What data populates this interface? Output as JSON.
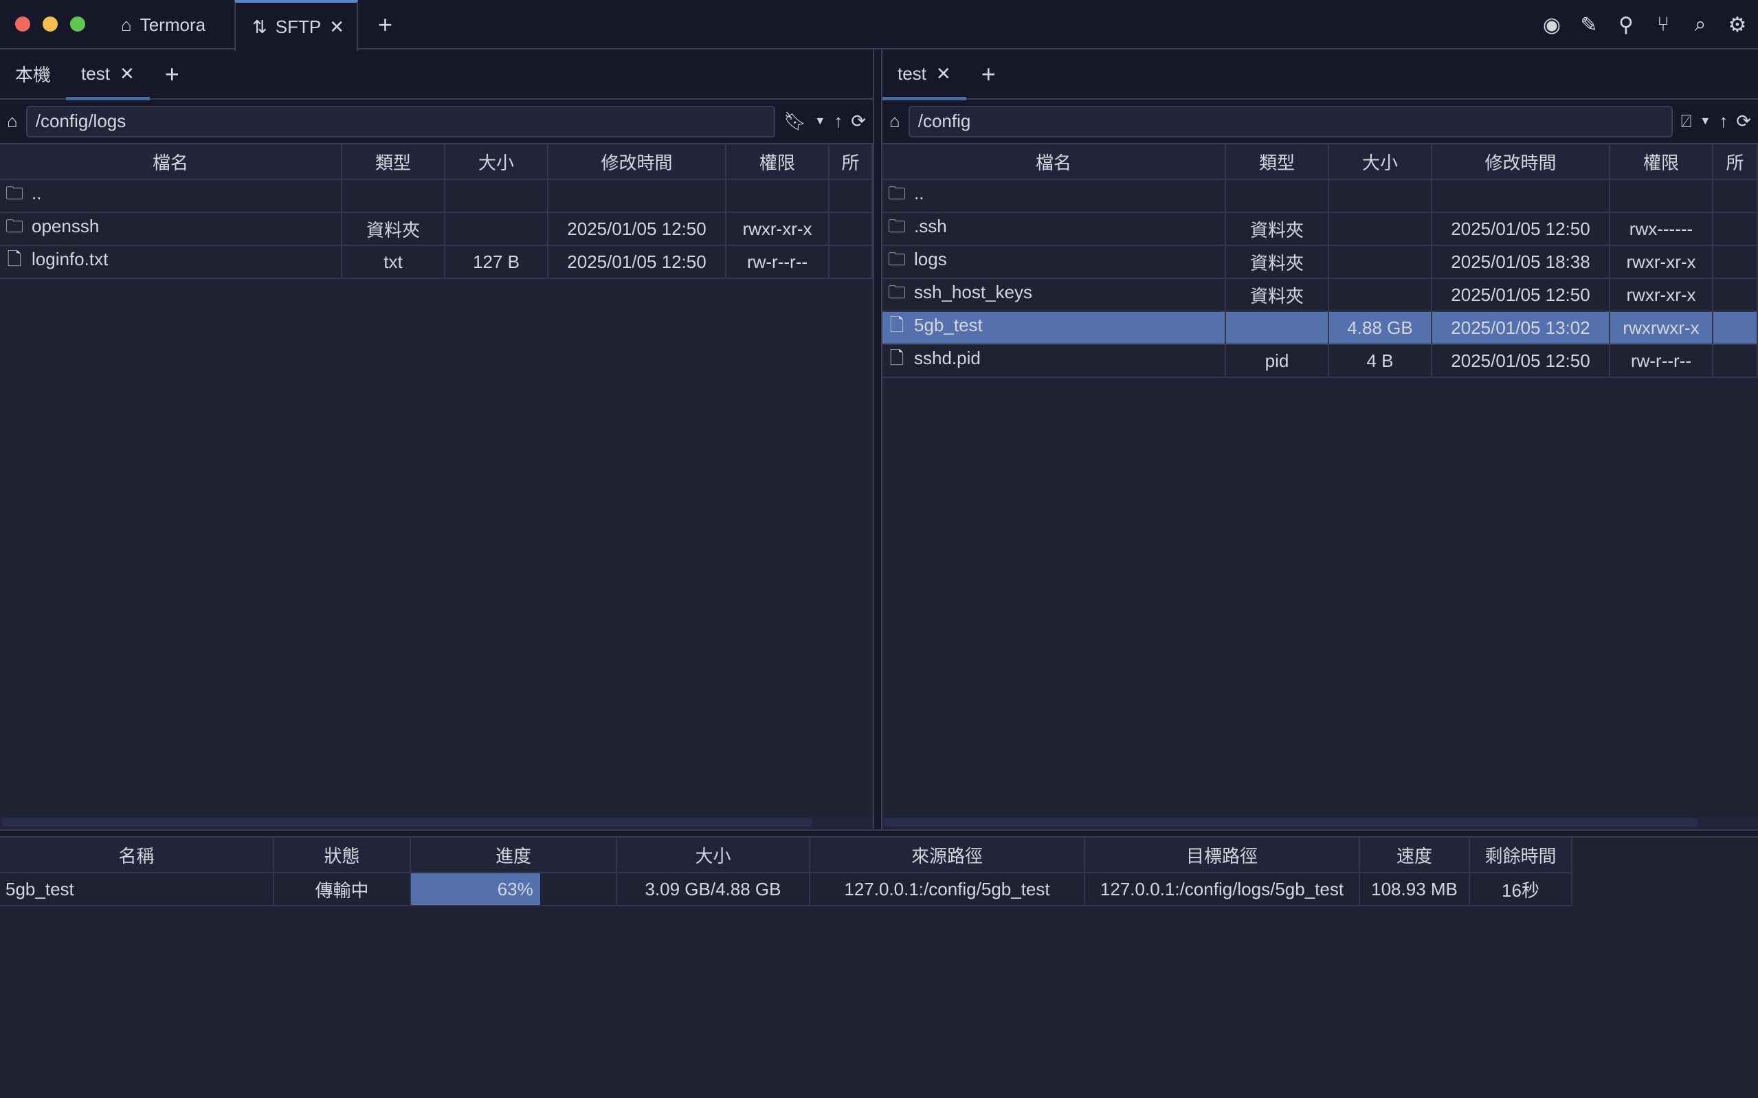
{
  "window": {
    "tabs": [
      {
        "label": "Termora",
        "icon": "home-icon"
      },
      {
        "label": "SFTP",
        "icon": "transfer-arrows-icon",
        "active": true
      }
    ],
    "toolbar_icons": [
      "record-icon",
      "pencil-icon",
      "key-icon",
      "branch-icon",
      "search-icon",
      "gear-icon"
    ]
  },
  "left": {
    "tabs": [
      {
        "label": "本機"
      },
      {
        "label": "test",
        "active": true
      }
    ],
    "path": "/config/logs",
    "columns": [
      "檔名",
      "類型",
      "大小",
      "修改時間",
      "權限",
      "所"
    ],
    "rows": [
      {
        "name": "..",
        "type": "folder",
        "kind": "",
        "size": "",
        "modified": "",
        "perm": ""
      },
      {
        "name": "openssh",
        "type": "folder",
        "kind": "資料夾",
        "size": "",
        "modified": "2025/01/05 12:50",
        "perm": "rwxr-xr-x"
      },
      {
        "name": "loginfo.txt",
        "type": "file",
        "kind": "txt",
        "size": "127 B",
        "modified": "2025/01/05 12:50",
        "perm": "rw-r--r--"
      }
    ]
  },
  "right": {
    "tabs": [
      {
        "label": "test",
        "active": true
      }
    ],
    "path": "/config",
    "columns": [
      "檔名",
      "類型",
      "大小",
      "修改時間",
      "權限",
      "所"
    ],
    "rows": [
      {
        "name": "..",
        "type": "folder",
        "kind": "",
        "size": "",
        "modified": "",
        "perm": ""
      },
      {
        "name": ".ssh",
        "type": "folder",
        "kind": "資料夾",
        "size": "",
        "modified": "2025/01/05 12:50",
        "perm": "rwx------"
      },
      {
        "name": "logs",
        "type": "folder",
        "kind": "資料夾",
        "size": "",
        "modified": "2025/01/05 18:38",
        "perm": "rwxr-xr-x"
      },
      {
        "name": "ssh_host_keys",
        "type": "folder",
        "kind": "資料夾",
        "size": "",
        "modified": "2025/01/05 12:50",
        "perm": "rwxr-xr-x"
      },
      {
        "name": "5gb_test",
        "type": "file",
        "kind": "",
        "size": "4.88 GB",
        "modified": "2025/01/05 13:02",
        "perm": "rwxrwxr-x",
        "selected": true
      },
      {
        "name": "sshd.pid",
        "type": "file",
        "kind": "pid",
        "size": "4 B",
        "modified": "2025/01/05 12:50",
        "perm": "rw-r--r--"
      }
    ]
  },
  "transfers": {
    "columns": [
      "名稱",
      "狀態",
      "進度",
      "大小",
      "來源路徑",
      "目標路徑",
      "速度",
      "剩餘時間"
    ],
    "rows": [
      {
        "name": "5gb_test",
        "status": "傳輸中",
        "progress": 63,
        "progress_label": "63%",
        "size": "3.09 GB/4.88 GB",
        "source": "127.0.0.1:/config/5gb_test",
        "target": "127.0.0.1:/config/logs/5gb_test",
        "speed": "108.93 MB",
        "remaining": "16秒"
      }
    ]
  },
  "colors": {
    "accent": "#5b86c9",
    "selection": "#5470ad",
    "background": "#1f2233",
    "titlebar": "#161829"
  }
}
